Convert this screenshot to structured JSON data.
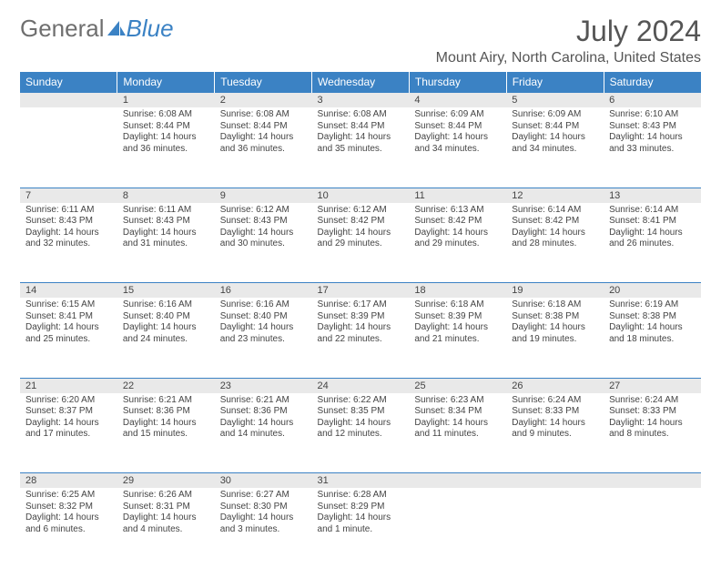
{
  "brand": {
    "part1": "General",
    "part2": "Blue"
  },
  "month_title": "July 2024",
  "location": "Mount Airy, North Carolina, United States",
  "colors": {
    "header_bg": "#3b82c4",
    "header_text": "#ffffff",
    "daynum_bg": "#e9e9e9",
    "daynum_border_top": "#3b82c4",
    "body_text": "#444444",
    "month_text": "#555555"
  },
  "weekdays": [
    "Sunday",
    "Monday",
    "Tuesday",
    "Wednesday",
    "Thursday",
    "Friday",
    "Saturday"
  ],
  "weeks": [
    {
      "nums": [
        "",
        "1",
        "2",
        "3",
        "4",
        "5",
        "6"
      ],
      "days": [
        null,
        {
          "sunrise": "Sunrise: 6:08 AM",
          "sunset": "Sunset: 8:44 PM",
          "day1": "Daylight: 14 hours",
          "day2": "and 36 minutes."
        },
        {
          "sunrise": "Sunrise: 6:08 AM",
          "sunset": "Sunset: 8:44 PM",
          "day1": "Daylight: 14 hours",
          "day2": "and 36 minutes."
        },
        {
          "sunrise": "Sunrise: 6:08 AM",
          "sunset": "Sunset: 8:44 PM",
          "day1": "Daylight: 14 hours",
          "day2": "and 35 minutes."
        },
        {
          "sunrise": "Sunrise: 6:09 AM",
          "sunset": "Sunset: 8:44 PM",
          "day1": "Daylight: 14 hours",
          "day2": "and 34 minutes."
        },
        {
          "sunrise": "Sunrise: 6:09 AM",
          "sunset": "Sunset: 8:44 PM",
          "day1": "Daylight: 14 hours",
          "day2": "and 34 minutes."
        },
        {
          "sunrise": "Sunrise: 6:10 AM",
          "sunset": "Sunset: 8:43 PM",
          "day1": "Daylight: 14 hours",
          "day2": "and 33 minutes."
        }
      ]
    },
    {
      "nums": [
        "7",
        "8",
        "9",
        "10",
        "11",
        "12",
        "13"
      ],
      "days": [
        {
          "sunrise": "Sunrise: 6:11 AM",
          "sunset": "Sunset: 8:43 PM",
          "day1": "Daylight: 14 hours",
          "day2": "and 32 minutes."
        },
        {
          "sunrise": "Sunrise: 6:11 AM",
          "sunset": "Sunset: 8:43 PM",
          "day1": "Daylight: 14 hours",
          "day2": "and 31 minutes."
        },
        {
          "sunrise": "Sunrise: 6:12 AM",
          "sunset": "Sunset: 8:43 PM",
          "day1": "Daylight: 14 hours",
          "day2": "and 30 minutes."
        },
        {
          "sunrise": "Sunrise: 6:12 AM",
          "sunset": "Sunset: 8:42 PM",
          "day1": "Daylight: 14 hours",
          "day2": "and 29 minutes."
        },
        {
          "sunrise": "Sunrise: 6:13 AM",
          "sunset": "Sunset: 8:42 PM",
          "day1": "Daylight: 14 hours",
          "day2": "and 29 minutes."
        },
        {
          "sunrise": "Sunrise: 6:14 AM",
          "sunset": "Sunset: 8:42 PM",
          "day1": "Daylight: 14 hours",
          "day2": "and 28 minutes."
        },
        {
          "sunrise": "Sunrise: 6:14 AM",
          "sunset": "Sunset: 8:41 PM",
          "day1": "Daylight: 14 hours",
          "day2": "and 26 minutes."
        }
      ]
    },
    {
      "nums": [
        "14",
        "15",
        "16",
        "17",
        "18",
        "19",
        "20"
      ],
      "days": [
        {
          "sunrise": "Sunrise: 6:15 AM",
          "sunset": "Sunset: 8:41 PM",
          "day1": "Daylight: 14 hours",
          "day2": "and 25 minutes."
        },
        {
          "sunrise": "Sunrise: 6:16 AM",
          "sunset": "Sunset: 8:40 PM",
          "day1": "Daylight: 14 hours",
          "day2": "and 24 minutes."
        },
        {
          "sunrise": "Sunrise: 6:16 AM",
          "sunset": "Sunset: 8:40 PM",
          "day1": "Daylight: 14 hours",
          "day2": "and 23 minutes."
        },
        {
          "sunrise": "Sunrise: 6:17 AM",
          "sunset": "Sunset: 8:39 PM",
          "day1": "Daylight: 14 hours",
          "day2": "and 22 minutes."
        },
        {
          "sunrise": "Sunrise: 6:18 AM",
          "sunset": "Sunset: 8:39 PM",
          "day1": "Daylight: 14 hours",
          "day2": "and 21 minutes."
        },
        {
          "sunrise": "Sunrise: 6:18 AM",
          "sunset": "Sunset: 8:38 PM",
          "day1": "Daylight: 14 hours",
          "day2": "and 19 minutes."
        },
        {
          "sunrise": "Sunrise: 6:19 AM",
          "sunset": "Sunset: 8:38 PM",
          "day1": "Daylight: 14 hours",
          "day2": "and 18 minutes."
        }
      ]
    },
    {
      "nums": [
        "21",
        "22",
        "23",
        "24",
        "25",
        "26",
        "27"
      ],
      "days": [
        {
          "sunrise": "Sunrise: 6:20 AM",
          "sunset": "Sunset: 8:37 PM",
          "day1": "Daylight: 14 hours",
          "day2": "and 17 minutes."
        },
        {
          "sunrise": "Sunrise: 6:21 AM",
          "sunset": "Sunset: 8:36 PM",
          "day1": "Daylight: 14 hours",
          "day2": "and 15 minutes."
        },
        {
          "sunrise": "Sunrise: 6:21 AM",
          "sunset": "Sunset: 8:36 PM",
          "day1": "Daylight: 14 hours",
          "day2": "and 14 minutes."
        },
        {
          "sunrise": "Sunrise: 6:22 AM",
          "sunset": "Sunset: 8:35 PM",
          "day1": "Daylight: 14 hours",
          "day2": "and 12 minutes."
        },
        {
          "sunrise": "Sunrise: 6:23 AM",
          "sunset": "Sunset: 8:34 PM",
          "day1": "Daylight: 14 hours",
          "day2": "and 11 minutes."
        },
        {
          "sunrise": "Sunrise: 6:24 AM",
          "sunset": "Sunset: 8:33 PM",
          "day1": "Daylight: 14 hours",
          "day2": "and 9 minutes."
        },
        {
          "sunrise": "Sunrise: 6:24 AM",
          "sunset": "Sunset: 8:33 PM",
          "day1": "Daylight: 14 hours",
          "day2": "and 8 minutes."
        }
      ]
    },
    {
      "nums": [
        "28",
        "29",
        "30",
        "31",
        "",
        "",
        ""
      ],
      "days": [
        {
          "sunrise": "Sunrise: 6:25 AM",
          "sunset": "Sunset: 8:32 PM",
          "day1": "Daylight: 14 hours",
          "day2": "and 6 minutes."
        },
        {
          "sunrise": "Sunrise: 6:26 AM",
          "sunset": "Sunset: 8:31 PM",
          "day1": "Daylight: 14 hours",
          "day2": "and 4 minutes."
        },
        {
          "sunrise": "Sunrise: 6:27 AM",
          "sunset": "Sunset: 8:30 PM",
          "day1": "Daylight: 14 hours",
          "day2": "and 3 minutes."
        },
        {
          "sunrise": "Sunrise: 6:28 AM",
          "sunset": "Sunset: 8:29 PM",
          "day1": "Daylight: 14 hours",
          "day2": "and 1 minute."
        },
        null,
        null,
        null
      ]
    }
  ]
}
